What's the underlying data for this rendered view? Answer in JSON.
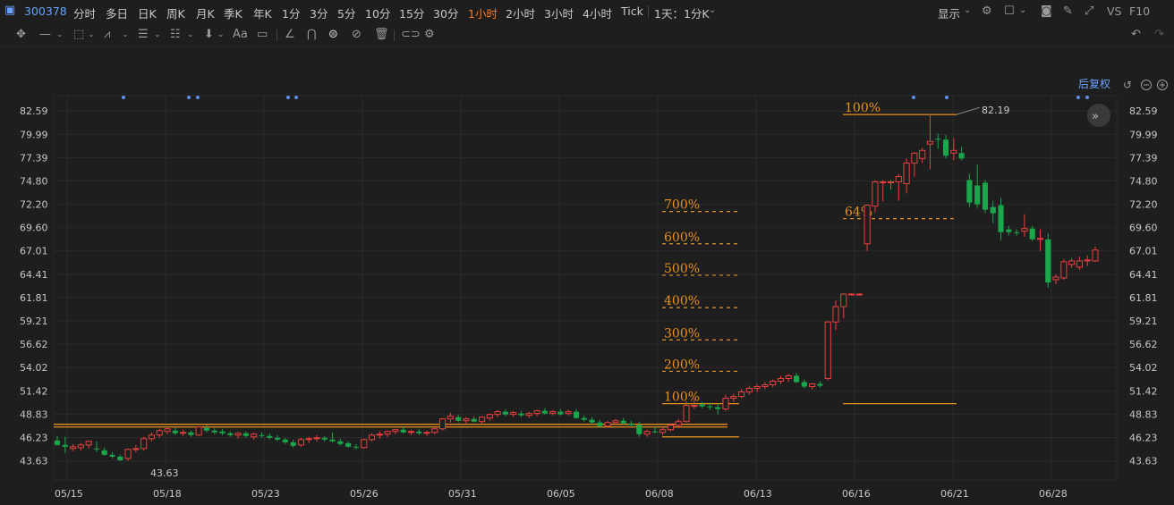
{
  "header": {
    "code": "300378",
    "periods": [
      "分时",
      "多日",
      "日K",
      "周K",
      "月K",
      "季K",
      "年K",
      "1分",
      "3分",
      "5分",
      "10分",
      "15分",
      "30分",
      "1小时",
      "2小时",
      "3小时",
      "4小时",
      "Tick"
    ],
    "active_period": "1小时",
    "range_select": "1天：1分K",
    "display_label": "显示",
    "vs_label": "VS",
    "f10_label": "F10"
  },
  "toolbar": {
    "icons": [
      "crosshair-icon",
      "line-icon",
      "rect-icon",
      "wave-icon",
      "text-tool-icon",
      "fib-tool-icon",
      "arrow-down-icon",
      "font-icon",
      "comment-icon",
      "pen-icon",
      "magnet-icon",
      "eye-icon",
      "hide-icon",
      "trash-icon",
      "link-icon",
      "settings-icon"
    ],
    "text_icon_label": "Aa"
  },
  "chart_controls": {
    "adjust_label": "后复权"
  },
  "colors": {
    "up": "#e8413f",
    "down": "#1aa64a",
    "fib": "#e8901e",
    "grid": "#2a2a2a",
    "background": "#1e1e1e"
  },
  "chart_data": {
    "type": "candlestick",
    "ylim": [
      41.5,
      84.3
    ],
    "y_ticks": [
      "82.59",
      "79.99",
      "77.39",
      "74.80",
      "72.20",
      "69.60",
      "67.01",
      "64.41",
      "61.81",
      "59.21",
      "56.62",
      "54.02",
      "51.42",
      "48.83",
      "46.23",
      "43.63"
    ],
    "x_ticks": [
      "05/15",
      "05/18",
      "05/23",
      "05/26",
      "05/31",
      "06/05",
      "06/08",
      "06/13",
      "06/16",
      "06/21",
      "06/28"
    ],
    "high_label": "82.19",
    "low_label": "43.63",
    "candles": [
      {
        "o": 45.9,
        "h": 46.4,
        "l": 45.3,
        "c": 45.4
      },
      {
        "o": 45.4,
        "h": 46.3,
        "l": 44.5,
        "c": 45.2
      },
      {
        "o": 45.0,
        "h": 45.5,
        "l": 44.7,
        "c": 45.2
      },
      {
        "o": 45.1,
        "h": 45.6,
        "l": 44.8,
        "c": 45.4
      },
      {
        "o": 45.4,
        "h": 45.9,
        "l": 45.0,
        "c": 45.8
      },
      {
        "o": 45.0,
        "h": 45.8,
        "l": 44.6,
        "c": 44.9
      },
      {
        "o": 44.8,
        "h": 45.1,
        "l": 44.2,
        "c": 44.3
      },
      {
        "o": 44.3,
        "h": 44.6,
        "l": 43.9,
        "c": 44.1
      },
      {
        "o": 44.1,
        "h": 44.3,
        "l": 43.6,
        "c": 43.7
      },
      {
        "o": 43.9,
        "h": 45.0,
        "l": 43.6,
        "c": 44.9
      },
      {
        "o": 44.9,
        "h": 45.4,
        "l": 44.6,
        "c": 45.0
      },
      {
        "o": 45.0,
        "h": 46.3,
        "l": 44.8,
        "c": 46.1
      },
      {
        "o": 46.1,
        "h": 46.8,
        "l": 45.8,
        "c": 46.5
      },
      {
        "o": 46.5,
        "h": 47.2,
        "l": 46.2,
        "c": 47.0
      },
      {
        "o": 46.9,
        "h": 47.3,
        "l": 46.6,
        "c": 47.2
      },
      {
        "o": 47.0,
        "h": 47.3,
        "l": 46.5,
        "c": 46.7
      },
      {
        "o": 46.7,
        "h": 47.1,
        "l": 46.4,
        "c": 46.8
      },
      {
        "o": 46.8,
        "h": 47.0,
        "l": 46.3,
        "c": 46.5
      },
      {
        "o": 46.5,
        "h": 47.5,
        "l": 46.4,
        "c": 47.4
      },
      {
        "o": 47.3,
        "h": 47.6,
        "l": 46.8,
        "c": 47.0
      },
      {
        "o": 47.0,
        "h": 47.3,
        "l": 46.6,
        "c": 46.8
      },
      {
        "o": 46.9,
        "h": 47.2,
        "l": 46.5,
        "c": 46.7
      },
      {
        "o": 46.7,
        "h": 46.9,
        "l": 46.3,
        "c": 46.5
      },
      {
        "o": 46.5,
        "h": 46.8,
        "l": 46.1,
        "c": 46.7
      },
      {
        "o": 46.7,
        "h": 46.9,
        "l": 46.2,
        "c": 46.4
      },
      {
        "o": 46.3,
        "h": 46.8,
        "l": 46.0,
        "c": 46.6
      },
      {
        "o": 46.5,
        "h": 46.8,
        "l": 46.2,
        "c": 46.4
      },
      {
        "o": 46.4,
        "h": 46.7,
        "l": 46.0,
        "c": 46.2
      },
      {
        "o": 46.2,
        "h": 46.5,
        "l": 45.8,
        "c": 46.0
      },
      {
        "o": 46.0,
        "h": 46.2,
        "l": 45.5,
        "c": 45.7
      },
      {
        "o": 45.7,
        "h": 46.0,
        "l": 45.1,
        "c": 45.3
      },
      {
        "o": 45.4,
        "h": 46.2,
        "l": 45.2,
        "c": 46.0
      },
      {
        "o": 46.0,
        "h": 46.3,
        "l": 45.6,
        "c": 46.1
      },
      {
        "o": 46.1,
        "h": 46.5,
        "l": 45.8,
        "c": 46.2
      },
      {
        "o": 46.2,
        "h": 46.4,
        "l": 45.8,
        "c": 46.0
      },
      {
        "o": 46.0,
        "h": 46.8,
        "l": 45.7,
        "c": 45.8
      },
      {
        "o": 45.8,
        "h": 46.1,
        "l": 45.3,
        "c": 45.5
      },
      {
        "o": 45.6,
        "h": 45.8,
        "l": 45.1,
        "c": 45.2
      },
      {
        "o": 45.2,
        "h": 45.5,
        "l": 44.9,
        "c": 45.1
      },
      {
        "o": 45.1,
        "h": 46.1,
        "l": 45.0,
        "c": 46.0
      },
      {
        "o": 46.0,
        "h": 46.7,
        "l": 45.8,
        "c": 46.5
      },
      {
        "o": 46.5,
        "h": 46.9,
        "l": 46.1,
        "c": 46.6
      },
      {
        "o": 46.6,
        "h": 47.0,
        "l": 46.3,
        "c": 46.9
      },
      {
        "o": 46.9,
        "h": 47.2,
        "l": 46.6,
        "c": 47.1
      },
      {
        "o": 47.1,
        "h": 47.4,
        "l": 46.7,
        "c": 46.8
      },
      {
        "o": 46.8,
        "h": 47.1,
        "l": 46.5,
        "c": 46.9
      },
      {
        "o": 46.9,
        "h": 47.2,
        "l": 46.5,
        "c": 46.7
      },
      {
        "o": 46.7,
        "h": 47.0,
        "l": 46.4,
        "c": 46.8
      },
      {
        "o": 46.8,
        "h": 47.3,
        "l": 46.6,
        "c": 47.2
      },
      {
        "o": 47.2,
        "h": 48.4,
        "l": 47.0,
        "c": 48.3
      },
      {
        "o": 48.3,
        "h": 49.0,
        "l": 47.9,
        "c": 48.6
      },
      {
        "o": 48.5,
        "h": 48.8,
        "l": 47.9,
        "c": 48.1
      },
      {
        "o": 48.1,
        "h": 48.5,
        "l": 47.8,
        "c": 48.3
      },
      {
        "o": 48.3,
        "h": 48.6,
        "l": 47.9,
        "c": 48.0
      },
      {
        "o": 48.0,
        "h": 48.6,
        "l": 47.8,
        "c": 48.5
      },
      {
        "o": 48.4,
        "h": 48.9,
        "l": 48.1,
        "c": 48.8
      },
      {
        "o": 48.8,
        "h": 49.3,
        "l": 48.5,
        "c": 49.1
      },
      {
        "o": 49.1,
        "h": 49.4,
        "l": 48.6,
        "c": 48.8
      },
      {
        "o": 48.8,
        "h": 49.2,
        "l": 48.5,
        "c": 49.0
      },
      {
        "o": 48.9,
        "h": 49.2,
        "l": 48.5,
        "c": 48.7
      },
      {
        "o": 48.7,
        "h": 49.1,
        "l": 48.4,
        "c": 48.9
      },
      {
        "o": 48.9,
        "h": 49.3,
        "l": 48.6,
        "c": 49.2
      },
      {
        "o": 49.2,
        "h": 49.5,
        "l": 48.8,
        "c": 48.9
      },
      {
        "o": 48.9,
        "h": 49.3,
        "l": 48.7,
        "c": 49.1
      },
      {
        "o": 49.1,
        "h": 49.4,
        "l": 48.7,
        "c": 48.8
      },
      {
        "o": 48.9,
        "h": 49.3,
        "l": 48.7,
        "c": 49.1
      },
      {
        "o": 49.1,
        "h": 49.4,
        "l": 48.3,
        "c": 48.4
      },
      {
        "o": 48.4,
        "h": 48.7,
        "l": 48.0,
        "c": 48.2
      },
      {
        "o": 48.2,
        "h": 48.5,
        "l": 47.7,
        "c": 47.9
      },
      {
        "o": 47.9,
        "h": 48.2,
        "l": 47.3,
        "c": 47.5
      },
      {
        "o": 47.5,
        "h": 48.1,
        "l": 47.3,
        "c": 47.9
      },
      {
        "o": 47.9,
        "h": 48.3,
        "l": 47.6,
        "c": 48.1
      },
      {
        "o": 48.1,
        "h": 48.4,
        "l": 47.7,
        "c": 47.8
      },
      {
        "o": 47.8,
        "h": 48.1,
        "l": 47.4,
        "c": 47.6
      },
      {
        "o": 47.6,
        "h": 48.0,
        "l": 46.3,
        "c": 46.6
      },
      {
        "o": 46.6,
        "h": 47.1,
        "l": 46.3,
        "c": 46.9
      },
      {
        "o": 46.9,
        "h": 47.4,
        "l": 46.7,
        "c": 46.8
      },
      {
        "o": 46.8,
        "h": 47.3,
        "l": 46.5,
        "c": 47.1
      },
      {
        "o": 47.1,
        "h": 47.8,
        "l": 46.9,
        "c": 47.6
      },
      {
        "o": 47.6,
        "h": 48.3,
        "l": 47.3,
        "c": 48.0
      },
      {
        "o": 48.0,
        "h": 50.3,
        "l": 47.9,
        "c": 49.8
      },
      {
        "o": 49.8,
        "h": 50.6,
        "l": 49.4,
        "c": 49.8
      },
      {
        "o": 49.9,
        "h": 50.2,
        "l": 49.5,
        "c": 49.7
      },
      {
        "o": 49.7,
        "h": 50.1,
        "l": 49.3,
        "c": 49.6
      },
      {
        "o": 49.6,
        "h": 50.0,
        "l": 48.8,
        "c": 49.4
      },
      {
        "o": 49.4,
        "h": 51.0,
        "l": 49.2,
        "c": 50.6
      },
      {
        "o": 50.6,
        "h": 51.1,
        "l": 50.2,
        "c": 50.8
      },
      {
        "o": 50.8,
        "h": 51.6,
        "l": 50.6,
        "c": 51.3
      },
      {
        "o": 51.3,
        "h": 52.0,
        "l": 51.0,
        "c": 51.7
      },
      {
        "o": 51.7,
        "h": 52.2,
        "l": 51.3,
        "c": 51.9
      },
      {
        "o": 51.9,
        "h": 52.4,
        "l": 51.6,
        "c": 52.1
      },
      {
        "o": 52.1,
        "h": 52.7,
        "l": 51.8,
        "c": 52.5
      },
      {
        "o": 52.5,
        "h": 53.1,
        "l": 52.2,
        "c": 52.8
      },
      {
        "o": 52.8,
        "h": 53.3,
        "l": 52.4,
        "c": 53.1
      },
      {
        "o": 53.1,
        "h": 53.4,
        "l": 52.3,
        "c": 52.4
      },
      {
        "o": 52.4,
        "h": 52.7,
        "l": 51.7,
        "c": 51.9
      },
      {
        "o": 51.9,
        "h": 52.3,
        "l": 51.6,
        "c": 52.2
      },
      {
        "o": 52.2,
        "h": 52.5,
        "l": 51.8,
        "c": 52.0
      },
      {
        "o": 52.8,
        "h": 59.2,
        "l": 52.6,
        "c": 59.1
      },
      {
        "o": 59.1,
        "h": 61.5,
        "l": 58.2,
        "c": 60.8
      },
      {
        "o": 60.8,
        "h": 62.3,
        "l": 59.5,
        "c": 62.2
      },
      {
        "o": 62.2,
        "h": 62.3,
        "l": 62.2,
        "c": 62.2
      },
      {
        "o": 62.2,
        "h": 62.3,
        "l": 62.2,
        "c": 62.2
      },
      {
        "o": 67.8,
        "h": 72.2,
        "l": 67.0,
        "c": 72.1
      },
      {
        "o": 72.0,
        "h": 74.9,
        "l": 71.3,
        "c": 74.7
      },
      {
        "o": 74.7,
        "h": 74.9,
        "l": 72.5,
        "c": 74.7
      },
      {
        "o": 74.7,
        "h": 74.9,
        "l": 73.8,
        "c": 74.7
      },
      {
        "o": 74.7,
        "h": 75.6,
        "l": 72.6,
        "c": 75.3
      },
      {
        "o": 74.5,
        "h": 77.3,
        "l": 73.4,
        "c": 76.8
      },
      {
        "o": 76.8,
        "h": 78.0,
        "l": 75.3,
        "c": 77.9
      },
      {
        "o": 77.3,
        "h": 78.5,
        "l": 76.8,
        "c": 78.2
      },
      {
        "o": 78.9,
        "h": 82.19,
        "l": 76.1,
        "c": 79.2
      },
      {
        "o": 79.5,
        "h": 80.1,
        "l": 78.4,
        "c": 79.4
      },
      {
        "o": 79.4,
        "h": 79.9,
        "l": 77.3,
        "c": 77.6
      },
      {
        "o": 77.9,
        "h": 79.6,
        "l": 77.1,
        "c": 78.2
      },
      {
        "o": 77.9,
        "h": 78.6,
        "l": 77.1,
        "c": 77.3
      },
      {
        "o": 74.9,
        "h": 75.6,
        "l": 71.9,
        "c": 72.4
      },
      {
        "o": 74.3,
        "h": 76.6,
        "l": 71.8,
        "c": 72.2
      },
      {
        "o": 74.6,
        "h": 74.9,
        "l": 71.2,
        "c": 71.6
      },
      {
        "o": 71.9,
        "h": 72.6,
        "l": 70.1,
        "c": 71.2
      },
      {
        "o": 72.1,
        "h": 72.9,
        "l": 68.2,
        "c": 69.1
      },
      {
        "o": 69.4,
        "h": 69.8,
        "l": 68.7,
        "c": 69.1
      },
      {
        "o": 69.1,
        "h": 69.4,
        "l": 68.7,
        "c": 69.0
      },
      {
        "o": 69.2,
        "h": 71.1,
        "l": 68.6,
        "c": 69.5
      },
      {
        "o": 69.5,
        "h": 69.8,
        "l": 68.1,
        "c": 68.3
      },
      {
        "o": 68.3,
        "h": 69.4,
        "l": 67.0,
        "c": 68.4
      },
      {
        "o": 68.3,
        "h": 69.0,
        "l": 62.9,
        "c": 63.5
      },
      {
        "o": 63.8,
        "h": 64.4,
        "l": 63.3,
        "c": 64.1
      },
      {
        "o": 64.0,
        "h": 66.1,
        "l": 63.8,
        "c": 65.8
      },
      {
        "o": 65.5,
        "h": 66.2,
        "l": 65.1,
        "c": 65.9
      },
      {
        "o": 65.2,
        "h": 66.4,
        "l": 64.9,
        "c": 65.9
      },
      {
        "o": 65.9,
        "h": 66.5,
        "l": 65.3,
        "c": 66.0
      },
      {
        "o": 65.9,
        "h": 67.5,
        "l": 65.8,
        "c": 67.1
      }
    ],
    "fib_extension": {
      "levels": [
        "100%",
        "200%",
        "300%",
        "400%",
        "500%",
        "600%",
        "700%"
      ],
      "prices": [
        50.0,
        53.6,
        57.1,
        60.7,
        64.3,
        67.8,
        71.4
      ]
    },
    "fib_retracement": {
      "levels": [
        "100%",
        "64%"
      ],
      "prices": [
        82.2,
        70.6
      ],
      "base": 50.0
    },
    "horizontal_band": [
      47.4,
      47.7
    ],
    "marker_level": 46.3
  }
}
